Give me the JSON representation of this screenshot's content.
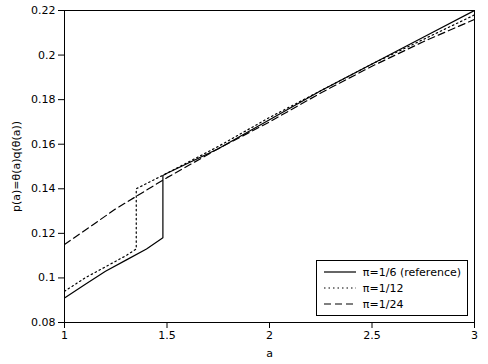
{
  "chart_data": {
    "type": "line",
    "xlabel": "a",
    "ylabel": "p(a)=θ(a)q(θ(a))",
    "xlim": [
      1,
      3
    ],
    "ylim": [
      0.08,
      0.22
    ],
    "xticks": [
      1,
      1.5,
      2,
      2.5,
      3
    ],
    "yticks": [
      0.08,
      0.1,
      0.12,
      0.14,
      0.16,
      0.18,
      0.2,
      0.22
    ],
    "grid": false,
    "legend": "lower right",
    "series": [
      {
        "name": "π=1/6 (reference)",
        "color": "#000000",
        "line_style": "solid",
        "x": [
          1,
          1.1,
          1.2,
          1.3,
          1.4,
          1.48,
          1.48,
          1.5,
          1.75,
          2,
          2.25,
          2.5,
          2.75,
          3
        ],
        "values": [
          0.091,
          0.097,
          0.103,
          0.108,
          0.113,
          0.118,
          0.146,
          0.147,
          0.158,
          0.171,
          0.184,
          0.196,
          0.208,
          0.22
        ]
      },
      {
        "name": "π=1/12",
        "color": "#000000",
        "line_style": "dotted",
        "x": [
          1,
          1.1,
          1.2,
          1.3,
          1.35,
          1.35,
          1.5,
          1.75,
          2,
          2.25,
          2.5,
          2.75,
          3
        ],
        "values": [
          0.094,
          0.1,
          0.105,
          0.11,
          0.113,
          0.14,
          0.147,
          0.159,
          0.172,
          0.184,
          0.196,
          0.207,
          0.218
        ]
      },
      {
        "name": "π=1/24",
        "color": "#000000",
        "line_style": "dashed",
        "x": [
          1,
          1.25,
          1.5,
          1.75,
          2,
          2.25,
          2.5,
          2.75,
          3
        ],
        "values": [
          0.115,
          0.131,
          0.145,
          0.158,
          0.17,
          0.183,
          0.195,
          0.206,
          0.216
        ]
      }
    ]
  }
}
